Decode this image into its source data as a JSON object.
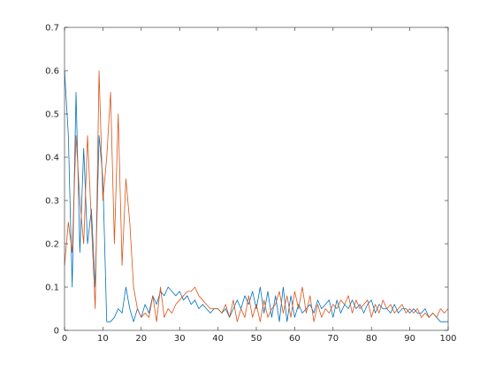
{
  "chart_data": {
    "type": "line",
    "xlim": [
      0,
      100
    ],
    "ylim": [
      0,
      0.7
    ],
    "grid": false,
    "x_ticks": [
      0,
      10,
      20,
      30,
      40,
      50,
      60,
      70,
      80,
      90,
      100
    ],
    "y_ticks": [
      0,
      0.1,
      0.2,
      0.3,
      0.4,
      0.5,
      0.6,
      0.7
    ],
    "x_tick_labels": [
      "0",
      "10",
      "20",
      "30",
      "40",
      "50",
      "60",
      "70",
      "80",
      "90",
      "100"
    ],
    "y_tick_labels": [
      "0",
      "0.1",
      "0.2",
      "0.3",
      "0.4",
      "0.5",
      "0.6",
      "0.7"
    ],
    "series": [
      {
        "color": "#0072BD",
        "values": [
          0.6,
          0.45,
          0.1,
          0.55,
          0.18,
          0.42,
          0.2,
          0.28,
          0.1,
          0.45,
          0.35,
          0.02,
          0.02,
          0.03,
          0.05,
          0.04,
          0.1,
          0.05,
          0.02,
          0.05,
          0.03,
          0.06,
          0.04,
          0.08,
          0.06,
          0.09,
          0.08,
          0.1,
          0.09,
          0.08,
          0.09,
          0.07,
          0.08,
          0.06,
          0.07,
          0.05,
          0.06,
          0.05,
          0.04,
          0.05,
          0.05,
          0.04,
          0.05,
          0.03,
          0.05,
          0.07,
          0.05,
          0.08,
          0.06,
          0.09,
          0.05,
          0.1,
          0.04,
          0.09,
          0.03,
          0.08,
          0.02,
          0.1,
          0.02,
          0.08,
          0.03,
          0.06,
          0.04,
          0.05,
          0.06,
          0.04,
          0.07,
          0.05,
          0.06,
          0.07,
          0.03,
          0.07,
          0.04,
          0.06,
          0.05,
          0.07,
          0.05,
          0.06,
          0.04,
          0.06,
          0.07,
          0.04,
          0.06,
          0.05,
          0.05,
          0.04,
          0.06,
          0.04,
          0.05,
          0.05,
          0.04,
          0.05,
          0.04,
          0.04,
          0.05,
          0.03,
          0.04,
          0.03,
          0.02,
          0.02,
          0.02
        ]
      },
      {
        "color": "#D95319",
        "values": [
          0.15,
          0.25,
          0.18,
          0.45,
          0.3,
          0.2,
          0.45,
          0.25,
          0.05,
          0.6,
          0.3,
          0.4,
          0.55,
          0.2,
          0.5,
          0.15,
          0.35,
          0.25,
          0.1,
          0.05,
          0.03,
          0.04,
          0.03,
          0.08,
          0.02,
          0.1,
          0.03,
          0.05,
          0.04,
          0.06,
          0.07,
          0.08,
          0.09,
          0.09,
          0.1,
          0.08,
          0.07,
          0.06,
          0.05,
          0.05,
          0.05,
          0.04,
          0.06,
          0.03,
          0.07,
          0.02,
          0.05,
          0.03,
          0.08,
          0.03,
          0.06,
          0.02,
          0.07,
          0.03,
          0.05,
          0.06,
          0.09,
          0.04,
          0.08,
          0.03,
          0.09,
          0.05,
          0.1,
          0.04,
          0.08,
          0.02,
          0.06,
          0.03,
          0.05,
          0.04,
          0.06,
          0.05,
          0.07,
          0.06,
          0.08,
          0.04,
          0.07,
          0.05,
          0.06,
          0.07,
          0.03,
          0.06,
          0.04,
          0.07,
          0.05,
          0.06,
          0.04,
          0.05,
          0.06,
          0.04,
          0.05,
          0.04,
          0.05,
          0.03,
          0.04,
          0.03,
          0.04,
          0.03,
          0.05,
          0.04,
          0.05
        ]
      }
    ]
  }
}
